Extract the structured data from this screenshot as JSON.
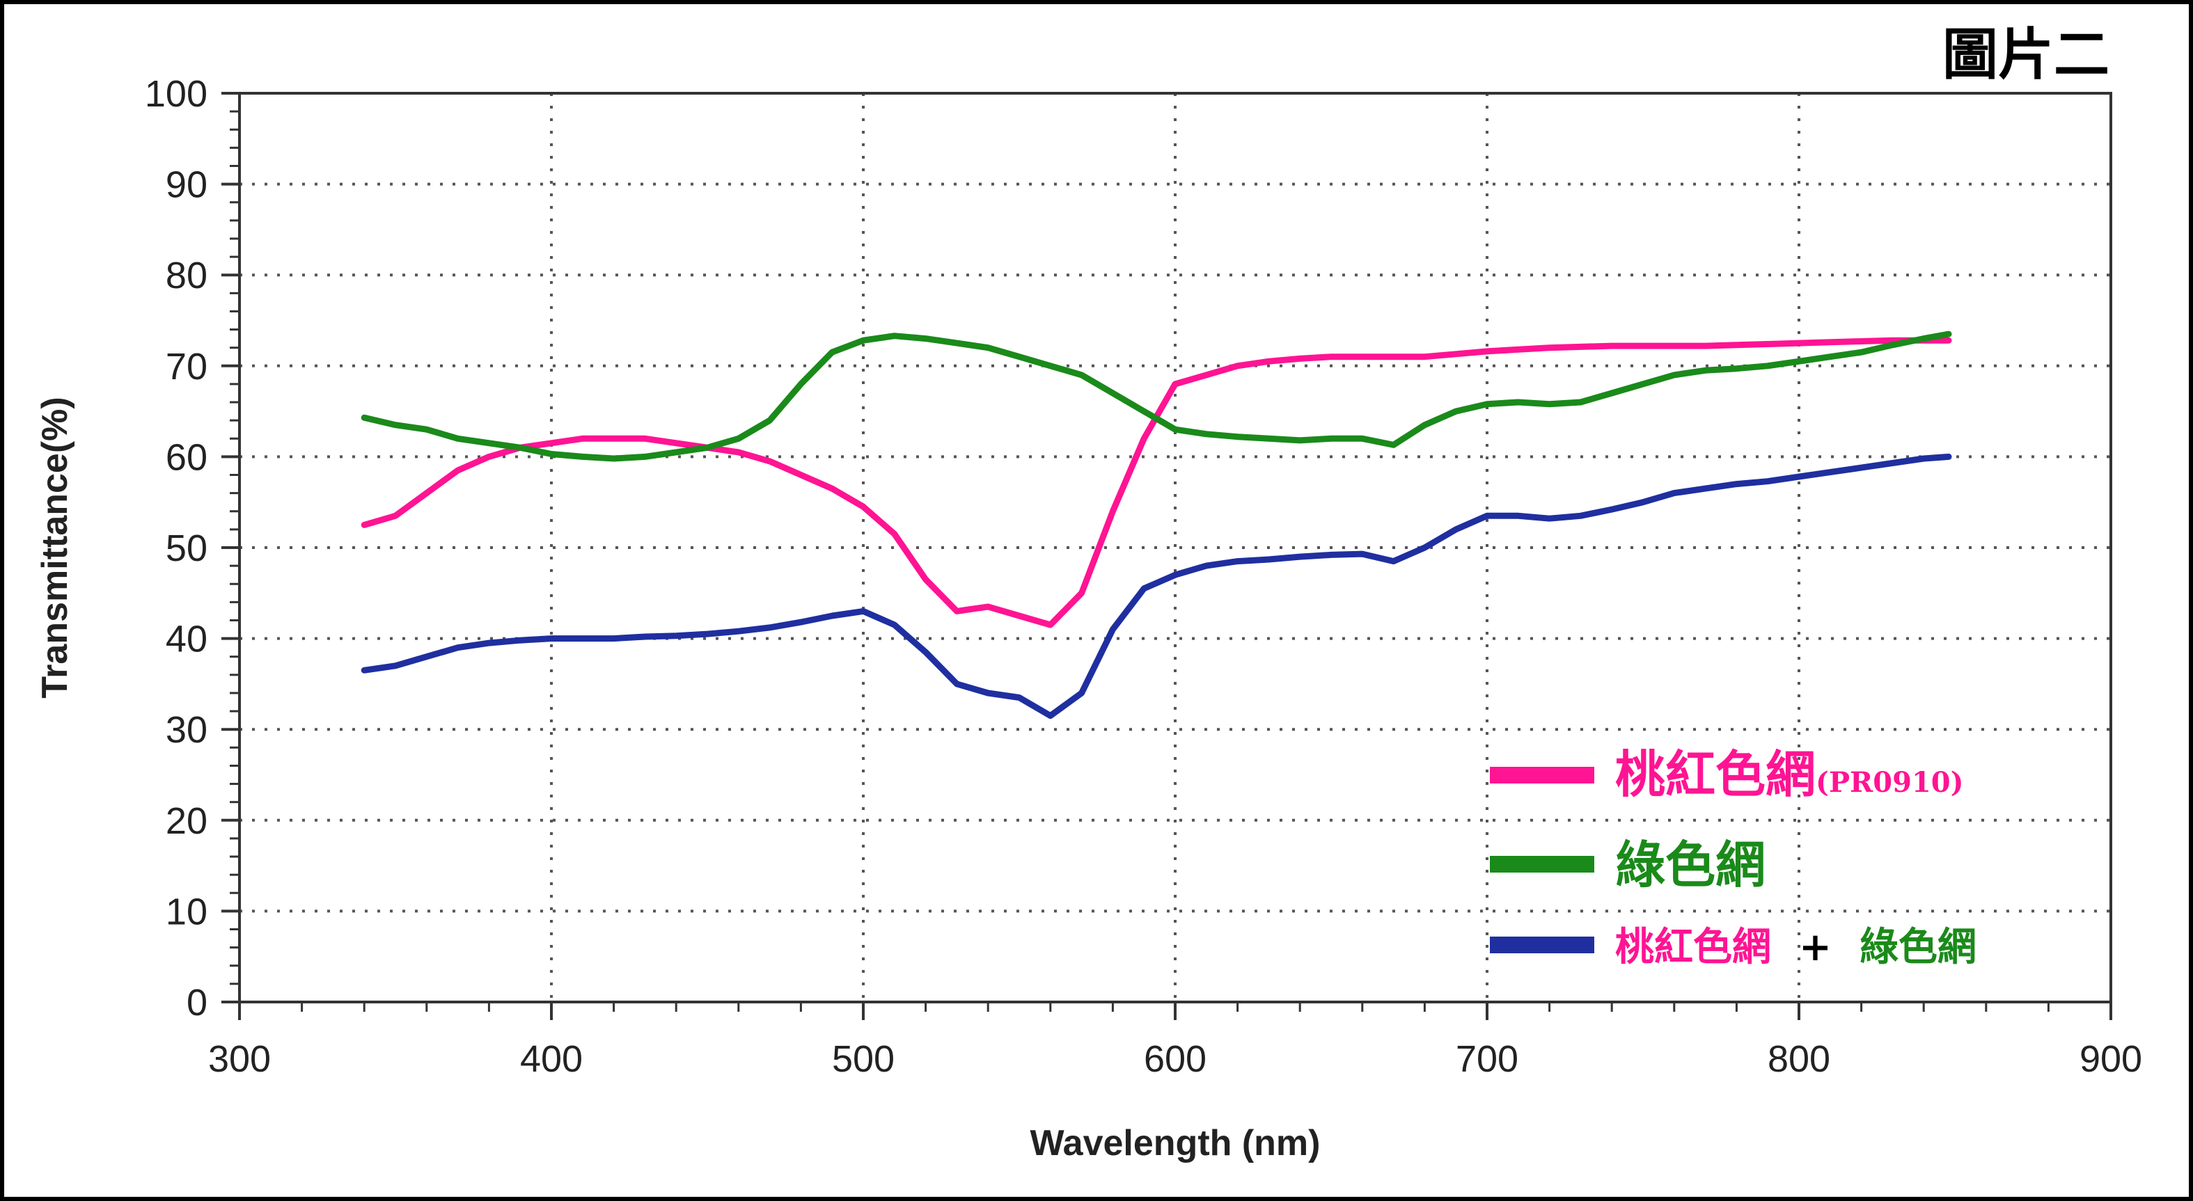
{
  "figure_label": "圖片二",
  "colors": {
    "magenta": "#ff1493",
    "green": "#1a8a1a",
    "blue": "#1f2fa0"
  },
  "chart_data": {
    "type": "line",
    "title": "",
    "xlabel": "Wavelength (nm)",
    "ylabel": "Transmittance(%)",
    "xlim": [
      300,
      900
    ],
    "ylim": [
      0,
      100
    ],
    "xticks": [
      300,
      400,
      500,
      600,
      700,
      800,
      900
    ],
    "yticks": [
      0,
      10,
      20,
      30,
      40,
      50,
      60,
      70,
      80,
      90,
      100
    ],
    "grid": true,
    "legend_position": "lower-right",
    "series": [
      {
        "name": "桃紅色網",
        "name_suffix": "(PR0910)",
        "color": "#ff1493",
        "x": [
          340,
          350,
          360,
          370,
          380,
          390,
          400,
          410,
          420,
          430,
          440,
          450,
          460,
          470,
          480,
          490,
          500,
          510,
          520,
          530,
          540,
          550,
          560,
          570,
          580,
          590,
          600,
          610,
          620,
          630,
          640,
          650,
          660,
          670,
          680,
          690,
          700,
          710,
          720,
          730,
          740,
          750,
          760,
          770,
          780,
          790,
          800,
          810,
          820,
          830,
          840,
          848
        ],
        "y": [
          52.5,
          53.5,
          56.0,
          58.5,
          60.0,
          61.0,
          61.5,
          62.0,
          62.0,
          62.0,
          61.5,
          61.0,
          60.5,
          59.5,
          58.0,
          56.5,
          54.5,
          51.5,
          46.5,
          43.0,
          43.5,
          42.5,
          41.5,
          45.0,
          54.0,
          62.0,
          68.0,
          69.0,
          70.0,
          70.5,
          70.8,
          71.0,
          71.0,
          71.0,
          71.0,
          71.3,
          71.6,
          71.8,
          72.0,
          72.1,
          72.2,
          72.2,
          72.2,
          72.2,
          72.3,
          72.4,
          72.5,
          72.6,
          72.7,
          72.8,
          72.8,
          72.8
        ]
      },
      {
        "name": "綠色網",
        "color": "#1a8a1a",
        "x": [
          340,
          350,
          360,
          370,
          380,
          390,
          400,
          410,
          420,
          430,
          440,
          450,
          460,
          470,
          480,
          490,
          500,
          510,
          520,
          530,
          540,
          550,
          560,
          570,
          580,
          590,
          600,
          610,
          620,
          630,
          640,
          650,
          660,
          670,
          680,
          690,
          700,
          710,
          720,
          730,
          740,
          750,
          760,
          770,
          780,
          790,
          800,
          810,
          820,
          830,
          840,
          848
        ],
        "y": [
          64.3,
          63.5,
          63.0,
          62.0,
          61.5,
          61.0,
          60.3,
          60.0,
          59.8,
          60.0,
          60.5,
          61.0,
          62.0,
          64.0,
          68.0,
          71.5,
          72.8,
          73.3,
          73.0,
          72.5,
          72.0,
          71.0,
          70.0,
          69.0,
          67.0,
          65.0,
          63.0,
          62.5,
          62.2,
          62.0,
          61.8,
          62.0,
          62.0,
          61.3,
          63.5,
          65.0,
          65.8,
          66.0,
          65.8,
          66.0,
          67.0,
          68.0,
          69.0,
          69.5,
          69.7,
          70.0,
          70.5,
          71.0,
          71.5,
          72.3,
          73.0,
          73.5
        ]
      },
      {
        "name": "桃紅色網 + 綠色網",
        "color": "#1f2fa0",
        "x": [
          340,
          350,
          360,
          370,
          380,
          390,
          400,
          410,
          420,
          430,
          440,
          450,
          460,
          470,
          480,
          490,
          500,
          510,
          520,
          530,
          540,
          550,
          560,
          570,
          580,
          590,
          600,
          610,
          620,
          630,
          640,
          650,
          660,
          670,
          680,
          690,
          700,
          710,
          720,
          730,
          740,
          750,
          760,
          770,
          780,
          790,
          800,
          810,
          820,
          830,
          840,
          848
        ],
        "y": [
          36.5,
          37.0,
          38.0,
          39.0,
          39.5,
          39.8,
          40.0,
          40.0,
          40.0,
          40.2,
          40.3,
          40.5,
          40.8,
          41.2,
          41.8,
          42.5,
          43.0,
          41.5,
          38.5,
          35.0,
          34.0,
          33.5,
          31.5,
          34.0,
          41.0,
          45.5,
          47.0,
          48.0,
          48.5,
          48.7,
          49.0,
          49.2,
          49.3,
          48.5,
          50.0,
          52.0,
          53.5,
          53.5,
          53.2,
          53.5,
          54.2,
          55.0,
          56.0,
          56.5,
          57.0,
          57.3,
          57.8,
          58.3,
          58.8,
          59.3,
          59.8,
          60.0
        ]
      }
    ]
  },
  "legend": {
    "items": [
      {
        "label": "桃紅色網",
        "suffix": "(PR0910)",
        "color": "#ff1493"
      },
      {
        "label": "綠色網",
        "color": "#1a8a1a"
      },
      {
        "label_a": "桃紅色網",
        "plus": "+",
        "label_b": "綠色網",
        "color": "#1f2fa0"
      }
    ]
  }
}
